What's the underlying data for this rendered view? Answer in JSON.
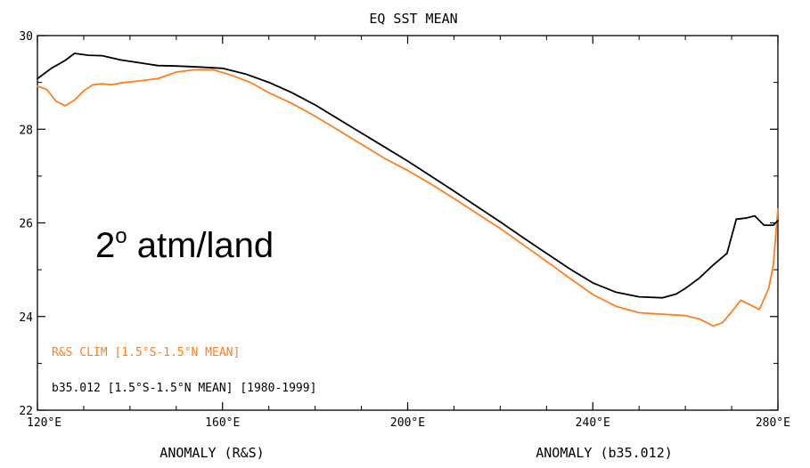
{
  "chart_data": {
    "type": "line",
    "title": "EQ SST MEAN",
    "xlim": [
      120,
      280
    ],
    "ylim": [
      22,
      30
    ],
    "x_ticks": [
      {
        "value": 120,
        "label": "120°E"
      },
      {
        "value": 160,
        "label": "160°E"
      },
      {
        "value": 200,
        "label": "200°E"
      },
      {
        "value": 240,
        "label": "240°E"
      },
      {
        "value": 280,
        "label": "280°E"
      }
    ],
    "y_ticks": [
      {
        "value": 22,
        "label": "22"
      },
      {
        "value": 24,
        "label": "24"
      },
      {
        "value": 26,
        "label": "26"
      },
      {
        "value": 28,
        "label": "28"
      },
      {
        "value": 30,
        "label": "30"
      }
    ],
    "bottom_labels": [
      "ANOMALY (R&S)",
      "ANOMALY (b35.012)"
    ],
    "annotation": {
      "main": "2",
      "sup": "o",
      "rest": " atm/land"
    },
    "legend_placement": "bottom-left",
    "series": [
      {
        "name": "R&S CLIM [1.5°S-1.5°N MEAN]",
        "color": "#ff7f1e",
        "points": [
          [
            120,
            28.92
          ],
          [
            122,
            28.85
          ],
          [
            124,
            28.6
          ],
          [
            126,
            28.5
          ],
          [
            128,
            28.62
          ],
          [
            130,
            28.82
          ],
          [
            132,
            28.95
          ],
          [
            134,
            28.97
          ],
          [
            136,
            28.95
          ],
          [
            138,
            28.99
          ],
          [
            142,
            29.03
          ],
          [
            146,
            29.08
          ],
          [
            150,
            29.22
          ],
          [
            154,
            29.27
          ],
          [
            158,
            29.27
          ],
          [
            162,
            29.15
          ],
          [
            166,
            29.0
          ],
          [
            170,
            28.78
          ],
          [
            175,
            28.55
          ],
          [
            180,
            28.28
          ],
          [
            185,
            27.98
          ],
          [
            190,
            27.68
          ],
          [
            195,
            27.38
          ],
          [
            200,
            27.12
          ],
          [
            205,
            26.83
          ],
          [
            210,
            26.52
          ],
          [
            215,
            26.2
          ],
          [
            220,
            25.88
          ],
          [
            225,
            25.53
          ],
          [
            230,
            25.18
          ],
          [
            235,
            24.82
          ],
          [
            240,
            24.47
          ],
          [
            245,
            24.22
          ],
          [
            250,
            24.08
          ],
          [
            255,
            24.05
          ],
          [
            260,
            24.02
          ],
          [
            263,
            23.95
          ],
          [
            266,
            23.8
          ],
          [
            268,
            23.87
          ],
          [
            270,
            24.1
          ],
          [
            272,
            24.35
          ],
          [
            274,
            24.25
          ],
          [
            276,
            24.15
          ],
          [
            278,
            24.6
          ],
          [
            279,
            25.1
          ],
          [
            280,
            26.3
          ]
        ]
      },
      {
        "name": "b35.012 [1.5°S-1.5°N MEAN] [1980-1999]",
        "color": "#000000",
        "points": [
          [
            120,
            29.08
          ],
          [
            123,
            29.3
          ],
          [
            126,
            29.47
          ],
          [
            128,
            29.62
          ],
          [
            131,
            29.58
          ],
          [
            134,
            29.57
          ],
          [
            138,
            29.48
          ],
          [
            142,
            29.42
          ],
          [
            146,
            29.36
          ],
          [
            150,
            29.35
          ],
          [
            155,
            29.33
          ],
          [
            160,
            29.3
          ],
          [
            165,
            29.18
          ],
          [
            170,
            29.0
          ],
          [
            175,
            28.78
          ],
          [
            180,
            28.52
          ],
          [
            185,
            28.22
          ],
          [
            190,
            27.92
          ],
          [
            195,
            27.62
          ],
          [
            200,
            27.32
          ],
          [
            205,
            27.0
          ],
          [
            210,
            26.68
          ],
          [
            215,
            26.35
          ],
          [
            220,
            26.02
          ],
          [
            225,
            25.68
          ],
          [
            230,
            25.35
          ],
          [
            235,
            25.02
          ],
          [
            240,
            24.72
          ],
          [
            245,
            24.52
          ],
          [
            250,
            24.42
          ],
          [
            255,
            24.4
          ],
          [
            258,
            24.48
          ],
          [
            260,
            24.6
          ],
          [
            263,
            24.82
          ],
          [
            266,
            25.1
          ],
          [
            269,
            25.35
          ],
          [
            271,
            26.08
          ],
          [
            273,
            26.1
          ],
          [
            275,
            26.15
          ],
          [
            277,
            25.95
          ],
          [
            279,
            25.95
          ],
          [
            280,
            26.05
          ]
        ]
      }
    ]
  }
}
